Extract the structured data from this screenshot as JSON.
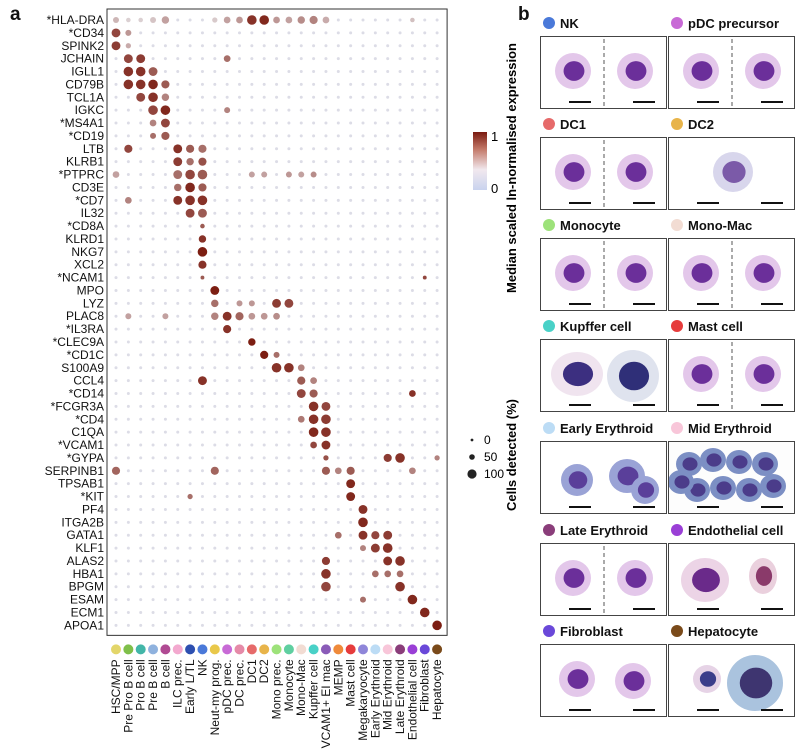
{
  "panel_a_letter": "a",
  "panel_b_letter": "b",
  "chart_data": {
    "type": "dotplot",
    "genes": [
      "*HLA-DRA",
      "*CD34",
      "SPINK2",
      "JCHAIN",
      "IGLL1",
      "CD79B",
      "TCL1A",
      "IGKC",
      "*MS4A1",
      "*CD19",
      "LTB",
      "KLRB1",
      "*PTPRC",
      "CD3E",
      "*CD7",
      "IL32",
      "*CD8A",
      "KLRD1",
      "NKG7",
      "XCL2",
      "*NCAM1",
      "MPO",
      "LYZ",
      "PLAC8",
      "*IL3RA",
      "*CLEC9A",
      "*CD1C",
      "S100A9",
      "CCL4",
      "*CD14",
      "*FCGR3A",
      "*CD4",
      "C1QA",
      "*VCAM1",
      "*GYPA",
      "SERPINB1",
      "TPSAB1",
      "*KIT",
      "PF4",
      "ITGA2B",
      "GATA1",
      "KLF1",
      "ALAS2",
      "HBA1",
      "BPGM",
      "ESAM",
      "ECM1",
      "APOA1"
    ],
    "cell_types": [
      "HSC/MPP",
      "Pre Pro B cell",
      "Pro B cell",
      "Pre B cell",
      "B cell",
      "ILC prec.",
      "Early L/TL",
      "NK",
      "Neut-my prog.",
      "pDC prec.",
      "DC prec.",
      "DC1",
      "DC2",
      "Mono prec.",
      "Monocyte",
      "Mono-Mac",
      "Kupffer cell",
      "VCAM1+ EI mac",
      "MEMP",
      "Mast cell",
      "Megakaryocyte",
      "Early Erythroid",
      "Mid Erythroid",
      "Late Erythroid",
      "Endothelial cell",
      "Fibroblast",
      "Hepatocyte"
    ],
    "cell_type_colors": [
      "#e3d66a",
      "#7fbf4a",
      "#43b6a8",
      "#8fb2de",
      "#b04a93",
      "#f3a9cf",
      "#2d4fb0",
      "#4a79d9",
      "#e9c84a",
      "#c86ad6",
      "#e58aa8",
      "#e66a6a",
      "#e8b44a",
      "#9de27a",
      "#5fcfa0",
      "#f2dcd3",
      "#49d1c7",
      "#8a5bb8",
      "#ef8a3a",
      "#e63c3c",
      "#8f86d9",
      "#bcdcf5",
      "#f8c6d9",
      "#8a3d7a",
      "#9a3fd6",
      "#6a48d9",
      "#7a4a1a"
    ],
    "highlights": [
      [
        0,
        0,
        0.5,
        0.25
      ],
      [
        0,
        1,
        0.3,
        0.12
      ],
      [
        0,
        2,
        0.3,
        0.12
      ],
      [
        0,
        3,
        0.5,
        0.18
      ],
      [
        0,
        4,
        0.7,
        0.35
      ],
      [
        0,
        8,
        0.4,
        0.15
      ],
      [
        0,
        9,
        0.6,
        0.35
      ],
      [
        0,
        10,
        0.6,
        0.4
      ],
      [
        0,
        11,
        1,
        0.9
      ],
      [
        0,
        12,
        1,
        0.95
      ],
      [
        0,
        13,
        0.6,
        0.4
      ],
      [
        0,
        14,
        0.6,
        0.35
      ],
      [
        0,
        15,
        0.7,
        0.45
      ],
      [
        0,
        16,
        0.8,
        0.5
      ],
      [
        0,
        17,
        0.6,
        0.3
      ],
      [
        0,
        24,
        0.3,
        0.2
      ],
      [
        1,
        0,
        0.9,
        0.8
      ],
      [
        1,
        1,
        0.5,
        0.4
      ],
      [
        2,
        0,
        0.9,
        0.85
      ],
      [
        2,
        1,
        0.4,
        0.3
      ],
      [
        3,
        1,
        0.9,
        0.8
      ],
      [
        3,
        2,
        0.9,
        0.85
      ],
      [
        3,
        9,
        0.6,
        0.6
      ],
      [
        4,
        1,
        1,
        0.9
      ],
      [
        4,
        2,
        1,
        0.9
      ],
      [
        4,
        3,
        0.9,
        0.7
      ],
      [
        5,
        1,
        1,
        0.9
      ],
      [
        5,
        2,
        1,
        0.9
      ],
      [
        5,
        3,
        1,
        0.95
      ],
      [
        5,
        4,
        0.8,
        0.7
      ],
      [
        6,
        2,
        0.9,
        0.8
      ],
      [
        6,
        3,
        1,
        0.9
      ],
      [
        6,
        4,
        0.7,
        0.5
      ],
      [
        7,
        3,
        1,
        0.8
      ],
      [
        7,
        4,
        1,
        0.95
      ],
      [
        7,
        9,
        0.5,
        0.5
      ],
      [
        8,
        3,
        0.6,
        0.5
      ],
      [
        8,
        4,
        0.9,
        0.8
      ],
      [
        9,
        3,
        0.5,
        0.6
      ],
      [
        9,
        4,
        0.8,
        0.7
      ],
      [
        10,
        1,
        0.8,
        0.8
      ],
      [
        10,
        5,
        0.9,
        0.9
      ],
      [
        10,
        6,
        0.8,
        0.7
      ],
      [
        10,
        7,
        0.8,
        0.6
      ],
      [
        11,
        5,
        0.9,
        0.85
      ],
      [
        11,
        6,
        0.7,
        0.6
      ],
      [
        11,
        7,
        0.8,
        0.75
      ],
      [
        12,
        0,
        0.6,
        0.35
      ],
      [
        12,
        5,
        0.9,
        0.6
      ],
      [
        12,
        6,
        1,
        0.8
      ],
      [
        12,
        7,
        1,
        0.7
      ],
      [
        12,
        11,
        0.5,
        0.35
      ],
      [
        12,
        12,
        0.5,
        0.35
      ],
      [
        12,
        14,
        0.5,
        0.4
      ],
      [
        12,
        15,
        0.5,
        0.35
      ],
      [
        12,
        16,
        0.5,
        0.45
      ],
      [
        13,
        5,
        0.7,
        0.6
      ],
      [
        13,
        6,
        1,
        0.95
      ],
      [
        13,
        7,
        0.8,
        0.7
      ],
      [
        14,
        1,
        0.6,
        0.5
      ],
      [
        14,
        5,
        0.9,
        0.9
      ],
      [
        14,
        6,
        1,
        0.9
      ],
      [
        14,
        7,
        1,
        0.9
      ],
      [
        15,
        6,
        0.9,
        0.8
      ],
      [
        15,
        7,
        0.9,
        0.7
      ],
      [
        16,
        7,
        0.3,
        0.7
      ],
      [
        17,
        7,
        0.7,
        0.9
      ],
      [
        18,
        7,
        1,
        1
      ],
      [
        19,
        7,
        0.8,
        0.9
      ],
      [
        20,
        7,
        0.2,
        0.7
      ],
      [
        20,
        25,
        0.2,
        0.8
      ],
      [
        21,
        8,
        0.9,
        1
      ],
      [
        22,
        8,
        0.7,
        0.6
      ],
      [
        22,
        13,
        0.9,
        0.85
      ],
      [
        22,
        14,
        0.9,
        0.8
      ],
      [
        22,
        10,
        0.5,
        0.4
      ],
      [
        22,
        11,
        0.5,
        0.4
      ],
      [
        23,
        1,
        0.5,
        0.35
      ],
      [
        23,
        4,
        0.5,
        0.35
      ],
      [
        23,
        8,
        0.7,
        0.5
      ],
      [
        23,
        9,
        0.9,
        0.9
      ],
      [
        23,
        10,
        0.8,
        0.65
      ],
      [
        23,
        11,
        0.6,
        0.4
      ],
      [
        23,
        12,
        0.6,
        0.4
      ],
      [
        23,
        13,
        0.6,
        0.45
      ],
      [
        24,
        9,
        0.8,
        0.9
      ],
      [
        25,
        11,
        0.7,
        1
      ],
      [
        26,
        12,
        0.8,
        1
      ],
      [
        26,
        13,
        0.5,
        0.6
      ],
      [
        27,
        13,
        1,
        0.9
      ],
      [
        27,
        14,
        1,
        0.9
      ],
      [
        27,
        15,
        0.6,
        0.5
      ],
      [
        28,
        7,
        0.9,
        0.9
      ],
      [
        28,
        15,
        0.8,
        0.7
      ],
      [
        28,
        16,
        0.6,
        0.5
      ],
      [
        29,
        15,
        0.9,
        0.8
      ],
      [
        29,
        16,
        0.8,
        0.7
      ],
      [
        29,
        24,
        0.6,
        0.9
      ],
      [
        30,
        16,
        1,
        0.9
      ],
      [
        30,
        17,
        0.9,
        0.8
      ],
      [
        31,
        15,
        0.6,
        0.55
      ],
      [
        31,
        16,
        1,
        0.9
      ],
      [
        31,
        17,
        1,
        0.85
      ],
      [
        32,
        16,
        1,
        0.95
      ],
      [
        32,
        17,
        1,
        0.9
      ],
      [
        33,
        16,
        0.6,
        0.8
      ],
      [
        33,
        17,
        0.9,
        0.9
      ],
      [
        34,
        17,
        0.4,
        0.75
      ],
      [
        34,
        22,
        0.8,
        0.85
      ],
      [
        34,
        23,
        1,
        0.9
      ],
      [
        34,
        26,
        0.4,
        0.5
      ],
      [
        35,
        0,
        0.8,
        0.65
      ],
      [
        35,
        8,
        0.8,
        0.65
      ],
      [
        35,
        17,
        0.8,
        0.7
      ],
      [
        35,
        18,
        0.6,
        0.5
      ],
      [
        35,
        19,
        0.8,
        0.7
      ],
      [
        35,
        24,
        0.6,
        0.5
      ],
      [
        36,
        19,
        0.9,
        0.95
      ],
      [
        37,
        6,
        0.4,
        0.6
      ],
      [
        37,
        19,
        0.9,
        0.95
      ],
      [
        38,
        20,
        0.9,
        0.9
      ],
      [
        39,
        20,
        1,
        0.95
      ],
      [
        40,
        18,
        0.6,
        0.6
      ],
      [
        40,
        20,
        0.9,
        0.9
      ],
      [
        40,
        21,
        0.8,
        0.8
      ],
      [
        40,
        22,
        0.9,
        0.85
      ],
      [
        41,
        20,
        0.5,
        0.5
      ],
      [
        41,
        21,
        0.9,
        0.85
      ],
      [
        41,
        22,
        1,
        0.9
      ],
      [
        42,
        17,
        0.8,
        0.85
      ],
      [
        42,
        22,
        0.9,
        0.9
      ],
      [
        42,
        23,
        1,
        0.9
      ],
      [
        43,
        17,
        1,
        0.9
      ],
      [
        43,
        21,
        0.6,
        0.6
      ],
      [
        43,
        22,
        0.6,
        0.6
      ],
      [
        43,
        23,
        0.6,
        0.6
      ],
      [
        44,
        17,
        1,
        0.8
      ],
      [
        44,
        23,
        1,
        0.9
      ],
      [
        45,
        24,
        1,
        0.95
      ],
      [
        45,
        20,
        0.5,
        0.6
      ],
      [
        46,
        25,
        1,
        0.95
      ],
      [
        47,
        26,
        1,
        1
      ]
    ],
    "colorbar_title": "Median scaled ln-normalised expression",
    "colorbar_ticks": [
      "1",
      "0"
    ],
    "size_legend_title": "Cells detected (%)",
    "size_legend_labels": [
      "0",
      "50",
      "100"
    ]
  },
  "panel_b": {
    "cells": [
      {
        "label": "NK",
        "color": "#4a79d9",
        "split": true
      },
      {
        "label": "pDC precursor",
        "color": "#c86ad6",
        "split": true
      },
      {
        "label": "DC1",
        "color": "#e66a6a",
        "split": true
      },
      {
        "label": "DC2",
        "color": "#e8b44a",
        "split": false
      },
      {
        "label": "Monocyte",
        "color": "#9de27a",
        "split": true
      },
      {
        "label": "Mono-Mac",
        "color": "#f2dcd3",
        "split": true
      },
      {
        "label": "Kupffer cell",
        "color": "#49d1c7",
        "split": false
      },
      {
        "label": "Mast cell",
        "color": "#e63c3c",
        "split": true
      },
      {
        "label": "Early Erythroid",
        "color": "#bcdcf5",
        "split": false
      },
      {
        "label": "Mid Erythroid",
        "color": "#f8c6d9",
        "split": false
      },
      {
        "label": "Late Erythroid",
        "color": "#8a3d7a",
        "split": true
      },
      {
        "label": "Endothelial cell",
        "color": "#9a3fd6",
        "split": false
      },
      {
        "label": "Fibroblast",
        "color": "#6a48d9",
        "split": false
      },
      {
        "label": "Hepatocyte",
        "color": "#7a4a1a",
        "split": false
      }
    ]
  }
}
